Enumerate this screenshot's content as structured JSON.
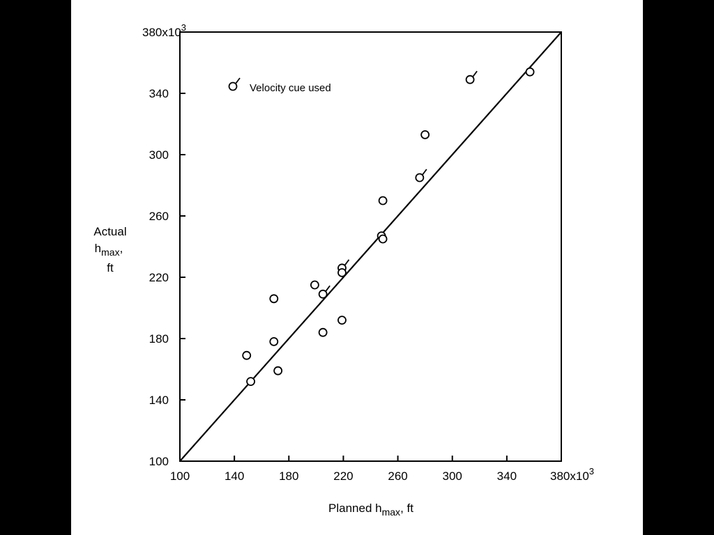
{
  "chart_data": {
    "type": "scatter",
    "title": "",
    "xlabel": {
      "main": "Planned h",
      "sub": "max",
      "unit": ", ft"
    },
    "ylabel": {
      "line1": "Actual",
      "main": "h",
      "sub": "max",
      "comma": ",",
      "unit": "ft"
    },
    "xlim": [
      100,
      380
    ],
    "ylim": [
      100,
      380
    ],
    "x_ticks": [
      {
        "value": 100,
        "label": "100"
      },
      {
        "value": 140,
        "label": "140"
      },
      {
        "value": 180,
        "label": "180"
      },
      {
        "value": 220,
        "label": "220"
      },
      {
        "value": 260,
        "label": "260"
      },
      {
        "value": 300,
        "label": "300"
      },
      {
        "value": 340,
        "label": "340"
      },
      {
        "value": 380,
        "label": "380x10",
        "exp": "3"
      }
    ],
    "y_ticks": [
      {
        "value": 100,
        "label": "100"
      },
      {
        "value": 140,
        "label": "140"
      },
      {
        "value": 180,
        "label": "180"
      },
      {
        "value": 220,
        "label": "220"
      },
      {
        "value": 260,
        "label": "260"
      },
      {
        "value": 300,
        "label": "300"
      },
      {
        "value": 340,
        "label": "340"
      },
      {
        "value": 380,
        "label": "380x10",
        "exp": "3"
      }
    ],
    "grid": false,
    "legend": {
      "position": "top-left",
      "label": "Velocity cue used",
      "marker": "circle-with-tail"
    },
    "reference_line": {
      "from": [
        100,
        100
      ],
      "to": [
        380,
        380
      ]
    },
    "points": [
      {
        "x": 149,
        "y": 169,
        "velocity_cue": false
      },
      {
        "x": 152,
        "y": 152,
        "velocity_cue": false
      },
      {
        "x": 169,
        "y": 206,
        "velocity_cue": false
      },
      {
        "x": 169,
        "y": 178,
        "velocity_cue": false
      },
      {
        "x": 172,
        "y": 159,
        "velocity_cue": false
      },
      {
        "x": 199,
        "y": 215,
        "velocity_cue": false
      },
      {
        "x": 205,
        "y": 209,
        "velocity_cue": true
      },
      {
        "x": 205,
        "y": 184,
        "velocity_cue": false
      },
      {
        "x": 219,
        "y": 226,
        "velocity_cue": true
      },
      {
        "x": 219,
        "y": 223,
        "velocity_cue": false
      },
      {
        "x": 219,
        "y": 192,
        "velocity_cue": false
      },
      {
        "x": 248,
        "y": 247,
        "velocity_cue": false
      },
      {
        "x": 249,
        "y": 245,
        "velocity_cue": false
      },
      {
        "x": 249,
        "y": 270,
        "velocity_cue": false
      },
      {
        "x": 276,
        "y": 285,
        "velocity_cue": true
      },
      {
        "x": 280,
        "y": 313,
        "velocity_cue": false
      },
      {
        "x": 313,
        "y": 349,
        "velocity_cue": true
      },
      {
        "x": 357,
        "y": 354,
        "velocity_cue": false
      }
    ]
  }
}
